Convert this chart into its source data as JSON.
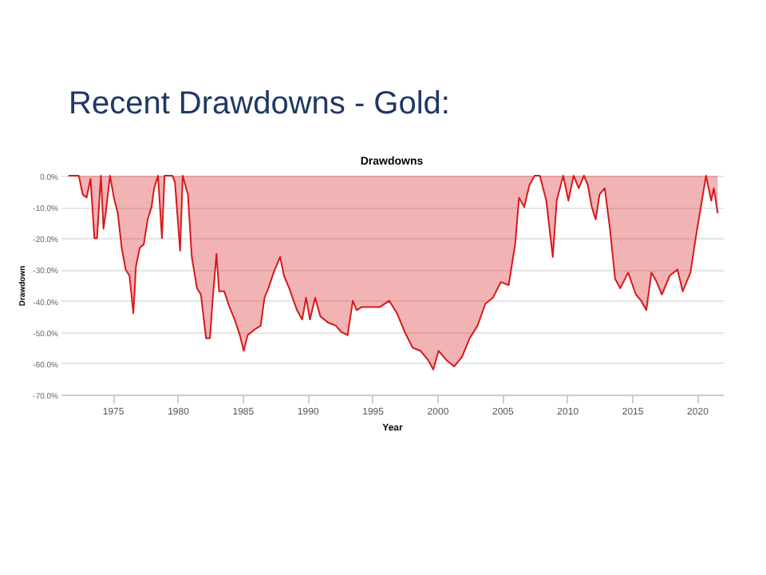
{
  "chart_data": {
    "type": "area",
    "title": "Recent Drawdowns - Gold:",
    "subtitle": "Drawdowns",
    "xlabel": "Year",
    "ylabel": "Drawdown",
    "series": [
      {
        "color": "#d7191c",
        "x": [
          1971.6,
          1972.4,
          1972.7,
          1973,
          1973.3,
          1973.6,
          1973.8,
          1974.1,
          1974.3,
          1974.5,
          1974.8,
          1975.1,
          1975.4,
          1975.7,
          1976,
          1976.3,
          1976.6,
          1976.8,
          1977.1,
          1977.4,
          1977.7,
          1978,
          1978.2,
          1978.5,
          1978.8,
          1979,
          1979.6,
          1979.8,
          1980.2,
          1980.4,
          1980.8,
          1981.1,
          1981.5,
          1981.8,
          1982.2,
          1982.5,
          1982.7,
          1983,
          1983.2,
          1983.6,
          1984,
          1984.4,
          1984.8,
          1985.1,
          1985.4,
          1986,
          1986.4,
          1986.7,
          1987,
          1987.4,
          1987.9,
          1988.2,
          1988.6,
          1989.2,
          1989.6,
          1989.9,
          1990.2,
          1990.6,
          1991,
          1991.6,
          1992.2,
          1992.6,
          1993.1,
          1993.5,
          1993.8,
          1994.2,
          1994.8,
          1995.6,
          1996.3,
          1996.9,
          1997.5,
          1998.1,
          1998.7,
          1999.3,
          1999.7,
          2000.1,
          2000.7,
          2001.3,
          2001.9,
          2002.5,
          2003.1,
          2003.7,
          2004.3,
          2004.9,
          2005.5,
          2006,
          2006.3,
          2006.7,
          2007.1,
          2007.5,
          2007.9,
          2008.4,
          2008.9,
          2009.2,
          2009.7,
          2010.1,
          2010.5,
          2010.9,
          2011.3,
          2011.6,
          2011.9,
          2012.2,
          2012.5,
          2012.9,
          2013.3,
          2013.7,
          2014.1,
          2014.7,
          2015.3,
          2015.7,
          2016.1,
          2016.5,
          2016.9,
          2017.3,
          2017.9,
          2018.5,
          2018.9,
          2019.5,
          2019.9,
          2020.3,
          2020.7,
          2021.1,
          2021.3,
          2021.6
        ],
        "values": [
          0,
          0,
          -6,
          -7,
          -1,
          -20,
          -20,
          0,
          -17,
          -11,
          0,
          -7,
          -12,
          -23,
          -30,
          -32,
          -44,
          -29,
          -23,
          -22,
          -14,
          -10,
          -4,
          0,
          -20,
          0,
          0,
          -2,
          -24,
          0,
          -6,
          -26,
          -36,
          -38,
          -52,
          -52,
          -40,
          -25,
          -37,
          -37,
          -42,
          -46,
          -51,
          -56,
          -51,
          -49,
          -48,
          -39,
          -36,
          -31,
          -26,
          -32,
          -36,
          -43,
          -46,
          -39,
          -46,
          -39,
          -45,
          -47,
          -48,
          -50,
          -51,
          -40,
          -43,
          -42,
          -42,
          -42,
          -40,
          -44,
          -50,
          -55,
          -56,
          -59,
          -62,
          -56,
          -59,
          -61,
          -58,
          -52,
          -48,
          -41,
          -39,
          -34,
          -35,
          -22,
          -7,
          -10,
          -3,
          0,
          0,
          -8,
          -26,
          -8,
          0,
          -8,
          0,
          -4,
          0,
          -3,
          -10,
          -14,
          -6,
          -4,
          -17,
          -33,
          -36,
          -31,
          -38,
          -40,
          -43,
          -31,
          -34,
          -38,
          -32,
          -30,
          -37,
          -31,
          -20,
          -10,
          0,
          -8,
          -4,
          -12
        ]
      }
    ],
    "xlim": [
      1971,
      2022
    ],
    "xticks": [
      1975,
      1980,
      1985,
      1990,
      1995,
      2000,
      2005,
      2010,
      2015,
      2020
    ],
    "ylim": [
      -70,
      0
    ],
    "yticks": [
      {
        "value": -70,
        "label": "-70.0%"
      },
      {
        "value": -60,
        "label": "-60.0%"
      },
      {
        "value": -50,
        "label": "-50.0%"
      },
      {
        "value": -40,
        "label": "-40.0%"
      },
      {
        "value": -30,
        "label": "-30.0%"
      },
      {
        "value": -20,
        "label": "-20.0%"
      },
      {
        "value": -10,
        "label": "-10.0%"
      },
      {
        "value": 0,
        "label": "0.0%"
      }
    ],
    "grid": "y"
  }
}
